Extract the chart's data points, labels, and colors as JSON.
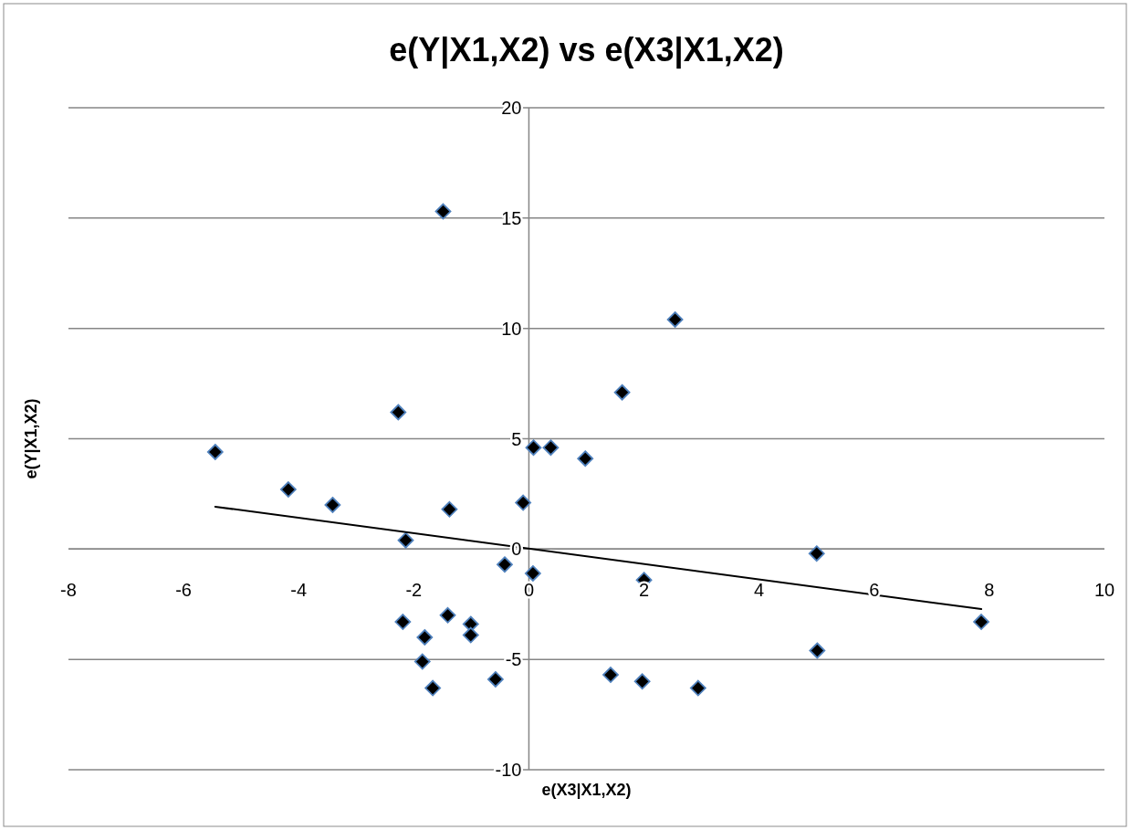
{
  "chart_data": {
    "type": "scatter",
    "title": "e(Y|X1,X2) vs e(X3|X1,X2)",
    "xlabel": "e(X3|X1,X2)",
    "ylabel": "e(Y|X1,X2)",
    "xlim": [
      -8,
      10
    ],
    "xticks": [
      -8,
      -6,
      -4,
      -2,
      0,
      2,
      4,
      6,
      8,
      10
    ],
    "ylim": [
      -10,
      20
    ],
    "yticks": [
      -10,
      -5,
      0,
      5,
      10,
      15,
      20
    ],
    "grid": "y",
    "marker": "diamond",
    "series": [
      {
        "color": "#000000",
        "x": [
          -1.49,
          2.54,
          1.62,
          0.98,
          0.08,
          0.38,
          -2.27,
          -5.45,
          -4.18,
          -3.41,
          -1.38,
          -2.14,
          -0.1,
          -0.42,
          0.07,
          -2.19,
          -1.41,
          -1.01,
          -1.81,
          -1.01,
          -1.85,
          -1.67,
          -0.58,
          2.0,
          5.0,
          7.86,
          5.01,
          1.42,
          1.97,
          2.94
        ],
        "values": [
          15.3,
          10.4,
          7.1,
          4.1,
          4.6,
          4.6,
          6.2,
          4.4,
          2.7,
          2.0,
          1.8,
          0.4,
          2.1,
          -0.7,
          -1.1,
          -3.3,
          -3.0,
          -3.4,
          -4.0,
          -3.9,
          -5.1,
          -6.3,
          -5.9,
          -1.4,
          -0.2,
          -3.3,
          -4.6,
          -5.7,
          -6.0,
          -6.3
        ]
      },
      {
        "type": "line",
        "color": "#000000",
        "marker": "none",
        "line_style": "solid",
        "x": [
          -5.45,
          7.86
        ],
        "values": [
          1.92,
          -2.72
        ]
      }
    ]
  }
}
